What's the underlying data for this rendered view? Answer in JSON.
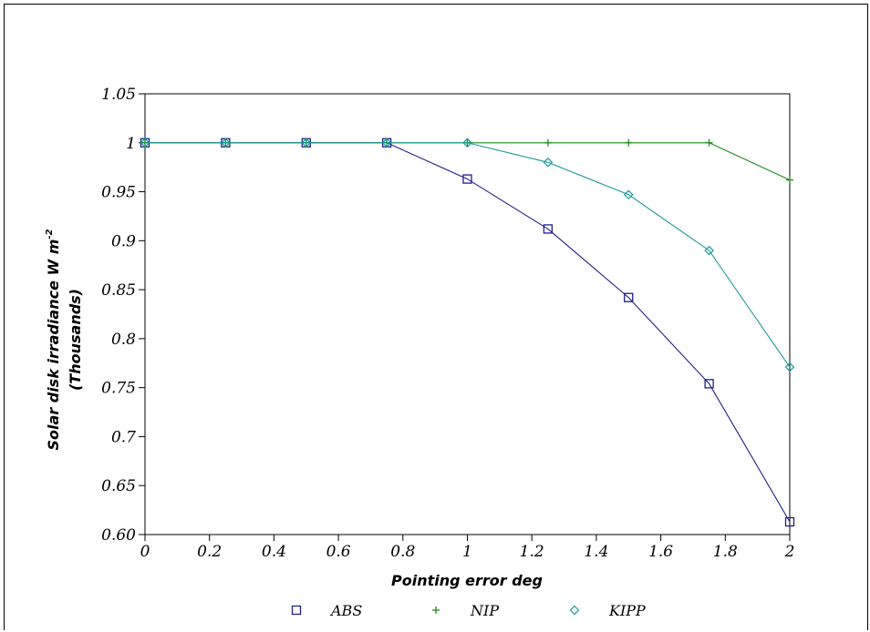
{
  "chart_data": {
    "type": "line",
    "xlabel": "Pointing error deg",
    "ylabel_line1": "Solar disk irradiance W m",
    "ylabel_superscript": "-2",
    "ylabel_line2": "(Thousands)",
    "xlim": [
      0,
      2
    ],
    "ylim": [
      0.6,
      1.05
    ],
    "x_ticks": [
      0,
      0.2,
      0.4,
      0.6,
      0.8,
      1,
      1.2,
      1.4,
      1.6,
      1.8,
      2
    ],
    "x_tick_labels": [
      "0",
      "0.2",
      "0.4",
      "0.6",
      "0.8",
      "1",
      "1.2",
      "1.4",
      "1.6",
      "1.8",
      "2"
    ],
    "y_ticks": [
      0.6,
      0.65,
      0.7,
      0.75,
      0.8,
      0.85,
      0.9,
      0.95,
      1,
      1.05
    ],
    "y_tick_labels": [
      "0.60",
      "0.65",
      "0.7",
      "0.75",
      "0.8",
      "0.85",
      "0.9",
      "0.95",
      "1",
      "1.05"
    ],
    "grid": false,
    "legend_position": "bottom",
    "series": [
      {
        "name": "ABS",
        "marker": "square",
        "color": "#1f1f8c",
        "x": [
          0,
          0.25,
          0.5,
          0.75,
          1,
          1.25,
          1.5,
          1.75,
          2
        ],
        "y": [
          1.0,
          1.0,
          1.0,
          1.0,
          0.963,
          0.912,
          0.842,
          0.754,
          0.613
        ]
      },
      {
        "name": "NIP",
        "marker": "plus",
        "color": "#1a8a1a",
        "x": [
          0,
          0.25,
          0.5,
          0.75,
          1,
          1.25,
          1.5,
          1.75,
          2
        ],
        "y": [
          1.0,
          1.0,
          1.0,
          1.0,
          1.0,
          1.0,
          1.0,
          1.0,
          0.962
        ]
      },
      {
        "name": "KIPP",
        "marker": "diamond",
        "color": "#1a9a9a",
        "x": [
          0,
          0.25,
          0.5,
          0.75,
          1,
          1.25,
          1.5,
          1.75,
          2
        ],
        "y": [
          1.0,
          1.0,
          1.0,
          1.0,
          1.0,
          0.98,
          0.947,
          0.89,
          0.771
        ]
      }
    ]
  }
}
